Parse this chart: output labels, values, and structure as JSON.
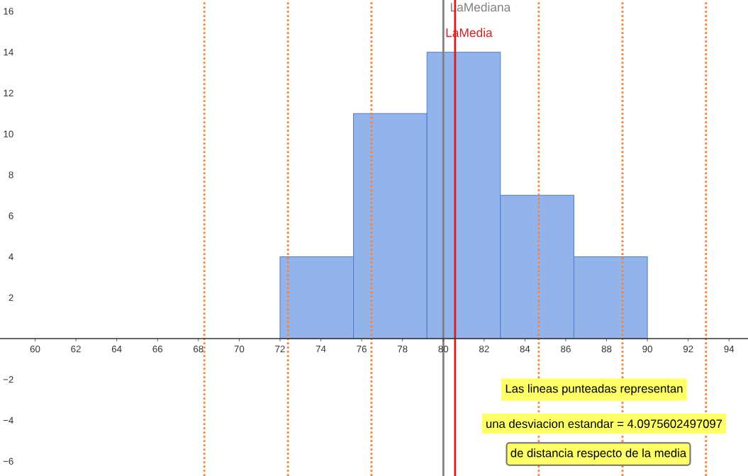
{
  "chart_data": {
    "type": "histogram",
    "bins": [
      72,
      75.6,
      79.2,
      82.8,
      86.4,
      90
    ],
    "values": [
      4,
      11,
      14,
      7,
      4
    ],
    "color": "#93b4ea",
    "xlim": [
      58.28,
      94.93
    ],
    "ylim": [
      -6.72,
      16.55
    ],
    "xticks": [
      60,
      62,
      64,
      66,
      68,
      70,
      72,
      74,
      76,
      78,
      80,
      82,
      84,
      86,
      88,
      90,
      92,
      94
    ],
    "yticks": [
      {
        "value": -6,
        "label": "−6"
      },
      {
        "value": -4,
        "label": "−4"
      },
      {
        "value": -2,
        "label": "−2"
      },
      2,
      4,
      6,
      8,
      10,
      12,
      14,
      16
    ],
    "ref_lines": [
      {
        "axis": "x",
        "value": 80,
        "label": "LaMediana",
        "color": "#808080",
        "line_style": "solid"
      },
      {
        "axis": "x",
        "value": 80.58,
        "label": "LaMedia",
        "color": "#d42020",
        "line_style": "solid"
      },
      {
        "axis": "x",
        "value": 68.29,
        "color": "#ff8033",
        "line_style": "dotted"
      },
      {
        "axis": "x",
        "value": 72.39,
        "color": "#ff8033",
        "line_style": "dotted"
      },
      {
        "axis": "x",
        "value": 76.48,
        "color": "#ff8033",
        "line_style": "dotted"
      },
      {
        "axis": "x",
        "value": 84.68,
        "color": "#ff8033",
        "line_style": "dotted"
      },
      {
        "axis": "x",
        "value": 88.78,
        "color": "#ff8033",
        "line_style": "dotted"
      },
      {
        "axis": "x",
        "value": 92.87,
        "color": "#ff8033",
        "line_style": "dotted"
      }
    ],
    "annotations": [
      "Las lineas punteadas representan",
      "una  desviacion estandar =  4.0975602497097",
      "de distancia respecto de la media"
    ]
  }
}
